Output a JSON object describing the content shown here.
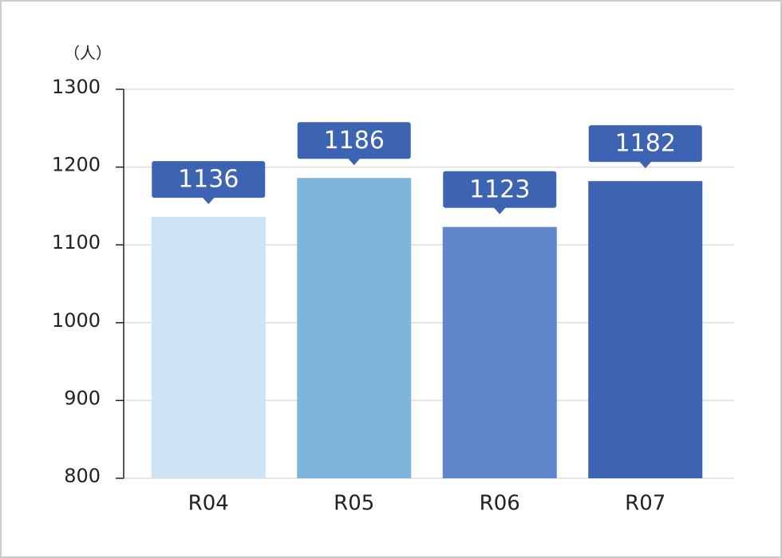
{
  "chart_data": {
    "type": "bar",
    "unit_label": "（人）",
    "categories": [
      "R04",
      "R05",
      "R06",
      "R07"
    ],
    "values": [
      1136,
      1186,
      1123,
      1182
    ],
    "colors": [
      "#cce4f5",
      "#7fb5da",
      "#6185cb",
      "#3c64b2"
    ],
    "label_color": "#3c64b2",
    "ylim": [
      800,
      1300
    ],
    "yticks": [
      800,
      900,
      1000,
      1100,
      1200,
      1300
    ],
    "grid": true
  }
}
